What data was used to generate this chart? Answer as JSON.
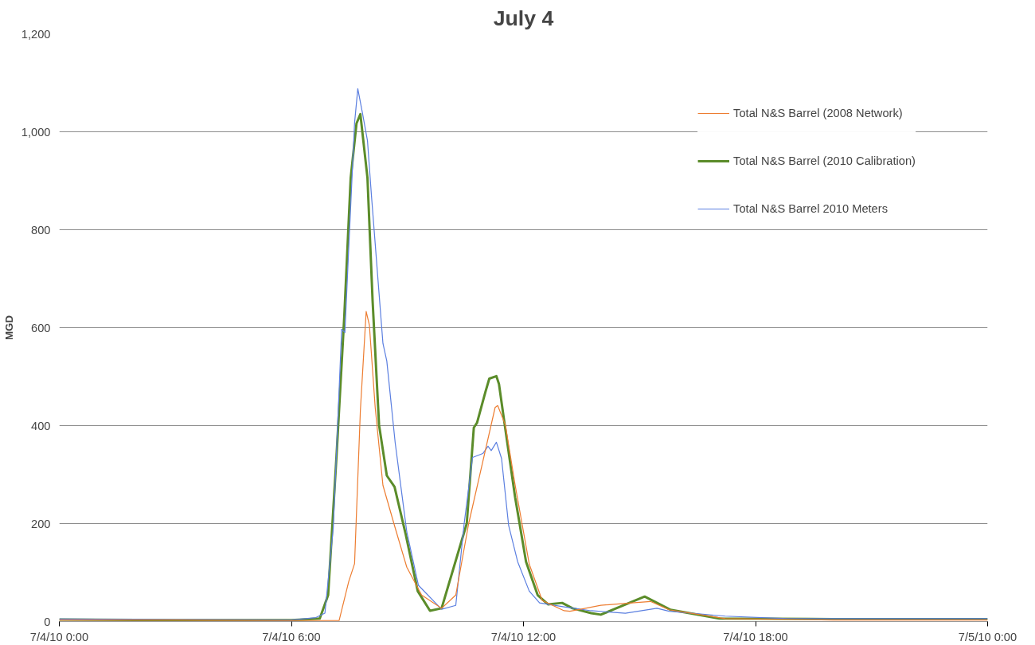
{
  "chart_data": {
    "type": "line",
    "title": "July 4",
    "ylabel": "MGD",
    "xlim": [
      "2010-07-04T00:00",
      "2010-07-05T00:00"
    ],
    "xticks": [
      {
        "value": "2010-07-04T00:00",
        "label": "7/4/10 0:00"
      },
      {
        "value": "2010-07-04T06:00",
        "label": "7/4/10 6:00"
      },
      {
        "value": "2010-07-04T12:00",
        "label": "7/4/10 12:00"
      },
      {
        "value": "2010-07-04T18:00",
        "label": "7/4/10 18:00"
      },
      {
        "value": "2010-07-05T00:00",
        "label": "7/5/10 0:00"
      }
    ],
    "ylim": [
      0,
      1200
    ],
    "yticks": [
      0,
      200,
      400,
      600,
      800,
      {
        "value": 1000,
        "label": "1,000"
      },
      {
        "value": 1200,
        "label": "1,200"
      }
    ],
    "grid": "y",
    "legend": "top right",
    "marker": "none",
    "line_style": "solid",
    "series": [
      {
        "name": "Total N&S Barrel (2008 Network)",
        "color": "#ed7d31",
        "x": [
          "2010-07-04T00:00",
          "2010-07-04T03:00",
          "2010-07-04T06:00",
          "2010-07-04T07:14",
          "2010-07-04T07:29",
          "2010-07-04T07:38",
          "2010-07-04T07:47",
          "2010-07-04T07:56",
          "2010-07-04T08:01",
          "2010-07-04T08:10",
          "2010-07-04T08:22",
          "2010-07-04T08:41",
          "2010-07-04T08:59",
          "2010-07-04T09:22",
          "2010-07-04T09:53",
          "2010-07-04T10:15",
          "2010-07-04T10:35",
          "2010-07-04T10:57",
          "2010-07-04T11:16",
          "2010-07-04T11:20",
          "2010-07-04T11:32",
          "2010-07-04T11:47",
          "2010-07-04T12:09",
          "2010-07-04T12:29",
          "2010-07-04T13:03",
          "2010-07-04T13:12",
          "2010-07-04T14:00",
          "2010-07-04T14:48",
          "2010-07-04T15:17",
          "2010-07-04T15:46",
          "2010-07-04T17:13",
          "2010-07-04T20:00",
          "2010-07-05T00:00"
        ],
        "values": [
          3,
          3,
          2,
          2,
          82,
          118,
          431,
          633,
          605,
          437,
          278,
          191,
          111,
          54,
          27,
          54,
          200,
          327,
          437,
          441,
          401,
          279,
          117,
          43,
          22,
          21,
          33,
          38,
          41,
          24,
          6,
          3,
          3
        ]
      },
      {
        "name": "Total N&S Barrel (2010 Calibration)",
        "color": "#5b8c2a",
        "x": [
          "2010-07-04T00:00",
          "2010-07-04T03:00",
          "2010-07-04T06:00",
          "2010-07-04T06:44",
          "2010-07-04T06:57",
          "2010-07-04T07:10",
          "2010-07-04T07:22",
          "2010-07-04T07:32",
          "2010-07-04T07:41",
          "2010-07-04T07:47",
          "2010-07-04T07:58",
          "2010-07-04T08:06",
          "2010-07-04T08:16",
          "2010-07-04T08:28",
          "2010-07-04T08:40",
          "2010-07-04T08:57",
          "2010-07-04T09:16",
          "2010-07-04T09:35",
          "2010-07-04T09:53",
          "2010-07-04T10:32",
          "2010-07-04T10:43",
          "2010-07-04T10:48",
          "2010-07-04T11:01",
          "2010-07-04T11:07",
          "2010-07-04T11:18",
          "2010-07-04T11:22",
          "2010-07-04T11:31",
          "2010-07-04T11:47",
          "2010-07-04T12:04",
          "2010-07-04T12:22",
          "2010-07-04T12:38",
          "2010-07-04T13:00",
          "2010-07-04T13:16",
          "2010-07-04T13:45",
          "2010-07-04T14:00",
          "2010-07-04T15:08",
          "2010-07-04T15:48",
          "2010-07-04T17:04",
          "2010-07-04T20:00",
          "2010-07-05T00:00"
        ],
        "values": [
          4,
          3,
          3,
          6,
          54,
          338,
          622,
          906,
          1017,
          1036,
          906,
          654,
          401,
          298,
          275,
          180,
          62,
          22,
          27,
          200,
          396,
          406,
          469,
          496,
          501,
          485,
          401,
          254,
          122,
          54,
          35,
          38,
          27,
          17,
          14,
          51,
          24,
          6,
          5,
          5
        ]
      },
      {
        "name": "Total N&S Barrel 2010 Meters",
        "color": "#5b7fe0",
        "x": [
          "2010-07-04T00:00",
          "2010-07-04T03:00",
          "2010-07-04T06:00",
          "2010-07-04T06:38",
          "2010-07-04T06:52",
          "2010-07-04T07:05",
          "2010-07-04T07:18",
          "2010-07-04T07:23",
          "2010-07-04T07:29",
          "2010-07-04T07:38",
          "2010-07-04T07:43",
          "2010-07-04T07:50",
          "2010-07-04T07:58",
          "2010-07-04T08:04",
          "2010-07-04T08:22",
          "2010-07-04T08:28",
          "2010-07-04T08:41",
          "2010-07-04T08:59",
          "2010-07-04T09:17",
          "2010-07-04T09:53",
          "2010-07-04T10:15",
          "2010-07-04T10:28",
          "2010-07-04T10:41",
          "2010-07-04T10:57",
          "2010-07-04T11:05",
          "2010-07-04T11:10",
          "2010-07-04T11:18",
          "2010-07-04T11:26",
          "2010-07-04T11:37",
          "2010-07-04T11:51",
          "2010-07-04T12:09",
          "2010-07-04T12:25",
          "2010-07-04T13:03",
          "2010-07-04T13:45",
          "2010-07-04T14:38",
          "2010-07-04T15:27",
          "2010-07-04T15:46",
          "2010-07-04T17:13",
          "2010-07-04T18:50",
          "2010-07-05T00:00"
        ],
        "values": [
          5,
          4,
          3,
          8,
          17,
          191,
          597,
          590,
          764,
          1018,
          1088,
          1040,
          982,
          873,
          568,
          532,
          365,
          183,
          74,
          25,
          33,
          200,
          335,
          343,
          358,
          349,
          366,
          333,
          196,
          122,
          62,
          38,
          30,
          22,
          17,
          27,
          21,
          11,
          6,
          6
        ]
      }
    ]
  }
}
